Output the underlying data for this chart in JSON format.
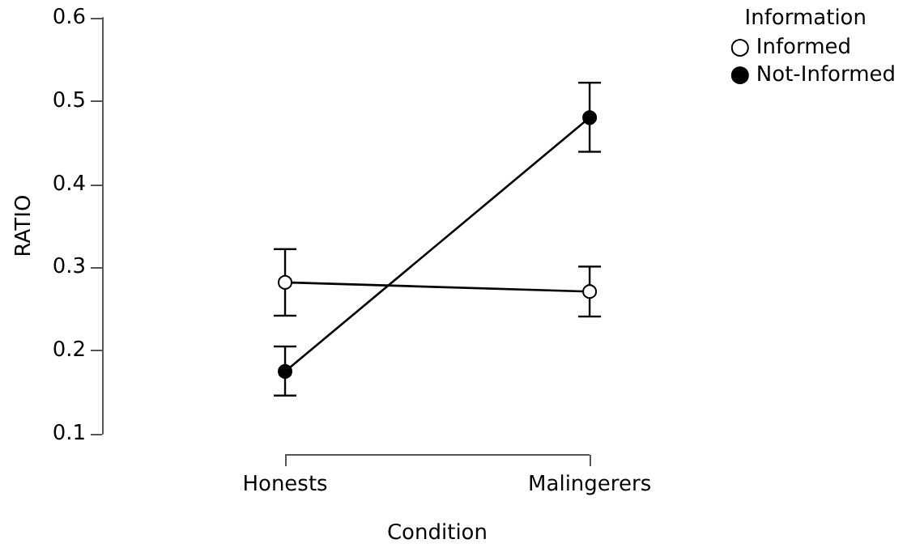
{
  "chart_data": {
    "type": "line",
    "xlabel": "Condition",
    "ylabel": "RATIO",
    "legend_title": "Information",
    "categories": [
      "Honests",
      "Malingerers"
    ],
    "series": [
      {
        "name": "Informed",
        "color": "#000000",
        "colors": [
          "#ffffff",
          "#ffffff"
        ],
        "values": [
          0.282,
          0.271
        ],
        "errors": [
          [
            0.242,
            0.322
          ],
          [
            0.241,
            0.301
          ]
        ]
      },
      {
        "name": "Not-Informed",
        "color": "#000000",
        "values": [
          0.175,
          0.48
        ],
        "errors": [
          [
            0.146,
            0.205
          ],
          [
            0.439,
            0.522
          ]
        ]
      }
    ],
    "ylim": [
      0.1,
      0.6
    ],
    "yticks": [
      0.1,
      0.2,
      0.3,
      0.4,
      0.5,
      0.6
    ],
    "grid": false,
    "legend": "top right",
    "marker": "circle",
    "line_style": "solid"
  }
}
